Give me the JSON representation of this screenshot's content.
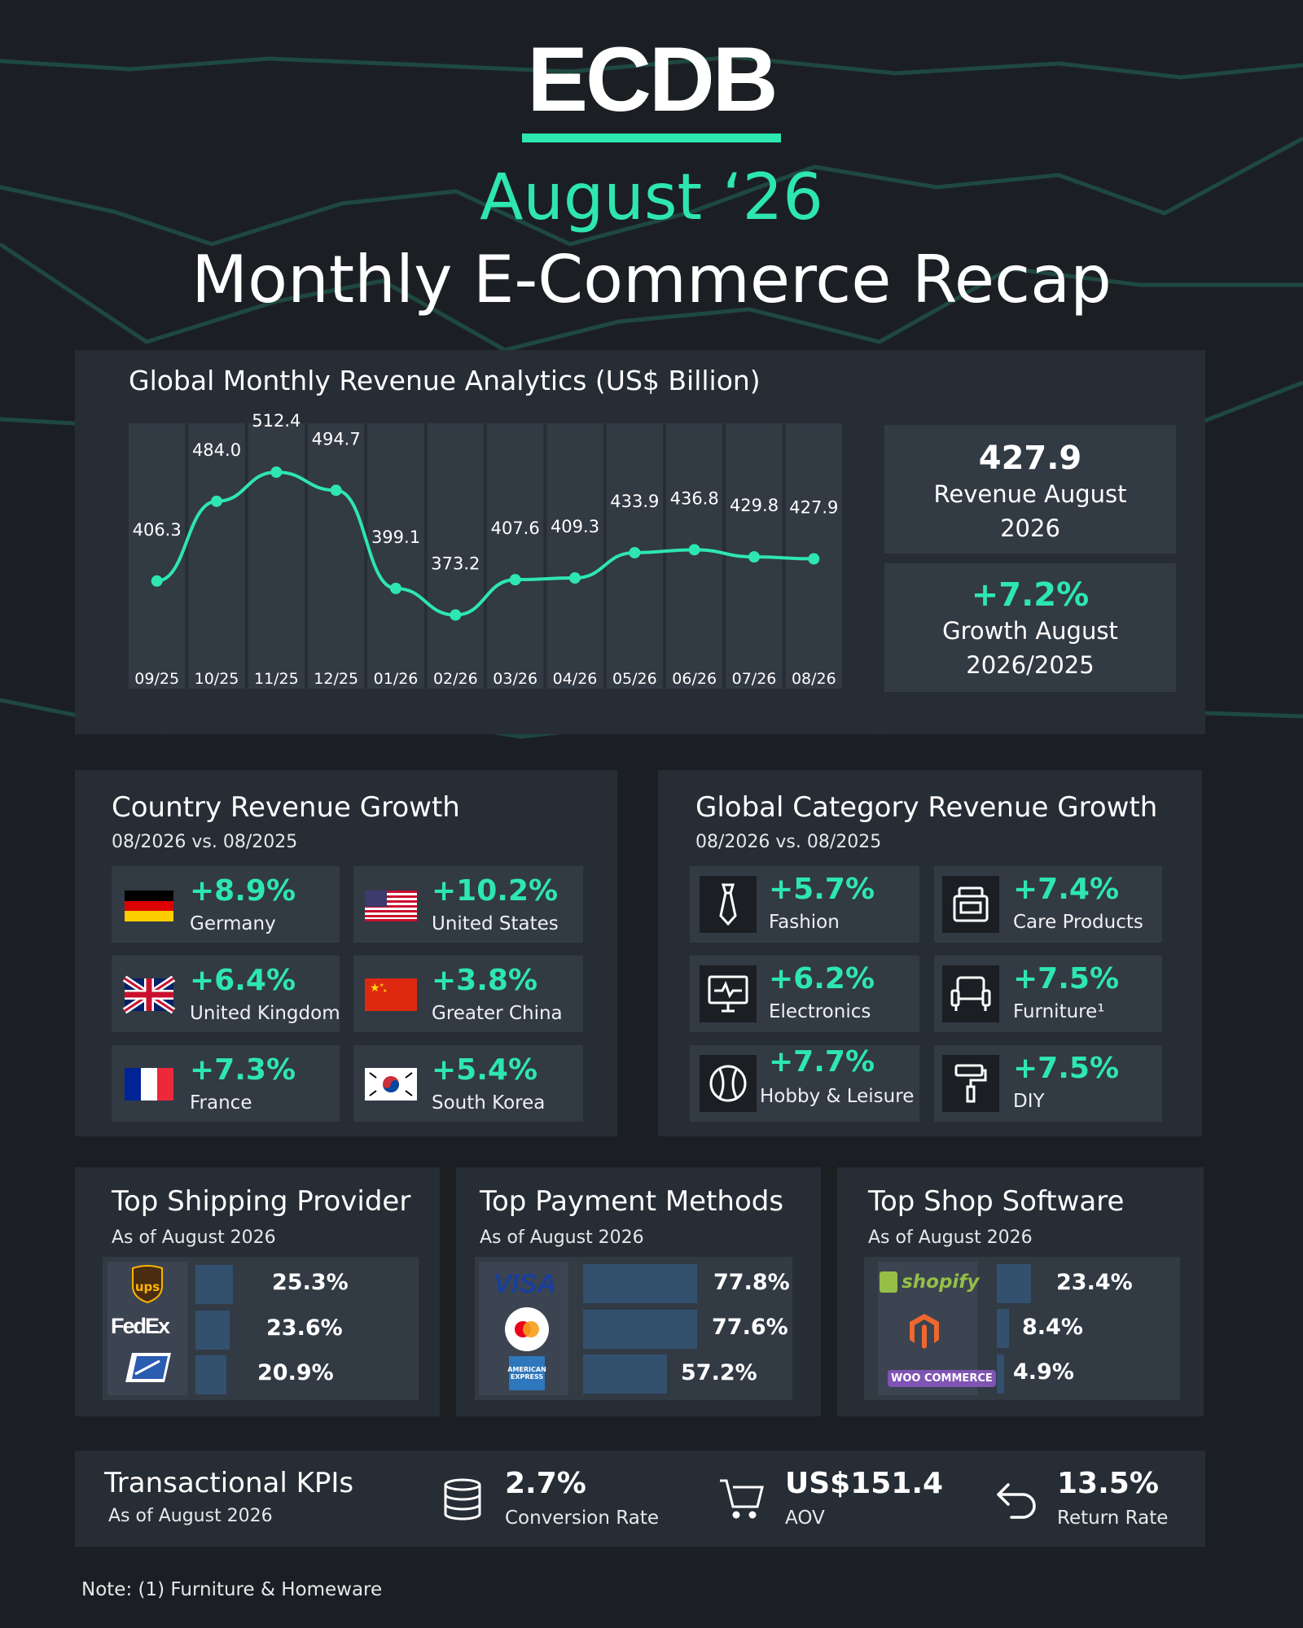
{
  "logo": {
    "text": "ECDB"
  },
  "header": {
    "period": "August ‘26",
    "title": "Monthly E-Commerce Recap"
  },
  "revenue": {
    "title": "Global Monthly Revenue Analytics (US$ Billion)",
    "current_value": "427.9",
    "current_label": "Revenue August 2026",
    "growth_value": "+7.2%",
    "growth_label": "Growth August 2026/2025"
  },
  "chart_data": {
    "type": "line",
    "title": "Global Monthly Revenue Analytics (US$ Billion)",
    "categories": [
      "09/25",
      "10/25",
      "11/25",
      "12/25",
      "01/26",
      "02/26",
      "03/26",
      "04/26",
      "05/26",
      "06/26",
      "07/26",
      "08/26"
    ],
    "series": [
      {
        "values": [
          406.3,
          484.0,
          512.4,
          494.7,
          399.1,
          373.2,
          407.6,
          409.3,
          433.9,
          436.8,
          429.8,
          427.9
        ]
      }
    ],
    "data_labels": [
      "406.3",
      "484.0",
      "512.4",
      "494.7",
      "399.1",
      "373.2",
      "407.6",
      "409.3",
      "433.9",
      "436.8",
      "429.8",
      "427.9"
    ],
    "ylim": [
      330,
      560
    ],
    "grid": false,
    "line_color": "#2ee6b0"
  },
  "countries": {
    "title": "Country Revenue Growth",
    "subtitle": "08/2026 vs. 08/2025",
    "items": [
      {
        "value": "+8.9%",
        "label": "Germany",
        "flag": "germany-flag"
      },
      {
        "value": "+10.2%",
        "label": "United States",
        "flag": "usa-flag"
      },
      {
        "value": "+6.4%",
        "label": "United Kingdom",
        "flag": "uk-flag"
      },
      {
        "value": "+3.8%",
        "label": "Greater China",
        "flag": "china-flag"
      },
      {
        "value": "+7.3%",
        "label": "France",
        "flag": "france-flag"
      },
      {
        "value": "+5.4%",
        "label": "South Korea",
        "flag": "south-korea-flag"
      }
    ]
  },
  "categories": {
    "title": "Global Category Revenue Growth",
    "subtitle": "08/2026 vs. 08/2025",
    "items": [
      {
        "value": "+5.7%",
        "label": "Fashion",
        "icon": "tie-icon"
      },
      {
        "value": "+7.4%",
        "label": "Care Products",
        "icon": "care-products-icon"
      },
      {
        "value": "+6.2%",
        "label": "Electronics",
        "icon": "monitor-icon"
      },
      {
        "value": "+7.5%",
        "label": "Furniture¹",
        "icon": "armchair-icon"
      },
      {
        "value": "+7.7%",
        "label": "Hobby & Leisure",
        "icon": "baseball-icon"
      },
      {
        "value": "+7.5%",
        "label": "DIY",
        "icon": "paint-roller-icon"
      }
    ]
  },
  "shipping": {
    "title": "Top Shipping Provider",
    "subtitle": "As of August 2026",
    "items": [
      {
        "logo": "ups-logo",
        "logo_text": "ups",
        "pct": 25.3,
        "label": "25.3%"
      },
      {
        "logo": "fedex-logo",
        "logo_text": "FedEx",
        "pct": 23.6,
        "label": "23.6%"
      },
      {
        "logo": "usps-logo",
        "logo_text": "",
        "pct": 20.9,
        "label": "20.9%"
      }
    ]
  },
  "payment": {
    "title": "Top Payment Methods",
    "subtitle": "As of August 2026",
    "items": [
      {
        "logo": "visa-logo",
        "logo_text": "VISA",
        "pct": 77.8,
        "label": "77.8%"
      },
      {
        "logo": "mastercard-logo",
        "logo_text": "",
        "pct": 77.6,
        "label": "77.6%"
      },
      {
        "logo": "amex-logo",
        "logo_text": "AMERICAN EXPRESS",
        "pct": 57.2,
        "label": "57.2%"
      }
    ]
  },
  "shop_software": {
    "title": "Top Shop Software",
    "subtitle": "As of August 2026",
    "items": [
      {
        "logo": "shopify-logo",
        "logo_text": "shopify",
        "pct": 23.4,
        "label": "23.4%"
      },
      {
        "logo": "magento-logo",
        "logo_text": "",
        "pct": 8.4,
        "label": "8.4%"
      },
      {
        "logo": "woocommerce-logo",
        "logo_text": "WOO COMMERCE",
        "pct": 4.9,
        "label": "4.9%"
      }
    ]
  },
  "kpis": {
    "title": "Transactional KPIs",
    "subtitle": "As of August 2026",
    "items": [
      {
        "value": "2.7%",
        "label": "Conversion Rate",
        "icon": "database-icon"
      },
      {
        "value": "US$151.4",
        "label": "AOV",
        "icon": "shopping-cart-icon"
      },
      {
        "value": "13.5%",
        "label": "Return Rate",
        "icon": "return-arrow-icon"
      }
    ]
  },
  "footnote": "Note: (1) Furniture & Homeware",
  "colors": {
    "accent": "#2ee6b0",
    "background": "#1b1f24",
    "panel": "#272d35",
    "tile": "#323a44",
    "bar": "#33506e"
  }
}
